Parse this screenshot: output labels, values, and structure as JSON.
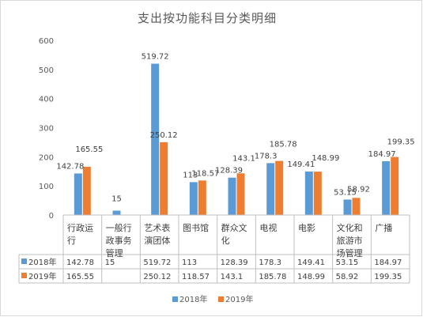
{
  "chart_data": {
    "type": "bar",
    "title": "支出按功能科目分类明细",
    "categories": [
      "行政运行",
      "一般行政事务管理",
      "艺术表演团体",
      "图书馆",
      "群众文化",
      "电视",
      "电影",
      "文化和旅游市场管理",
      "广播"
    ],
    "category_lines": [
      [
        "行政运",
        "行"
      ],
      [
        "一般行",
        "政事务",
        "管理"
      ],
      [
        "艺术表",
        "演团体"
      ],
      [
        "图书馆"
      ],
      [
        "群众文",
        "化"
      ],
      [
        "电视"
      ],
      [
        "电影"
      ],
      [
        "文化和",
        "旅游市",
        "场管理"
      ],
      [
        "广播"
      ]
    ],
    "series": [
      {
        "name": "2018年",
        "color": "#5B9BD5",
        "values": [
          142.78,
          15,
          519.72,
          113,
          128.39,
          178.3,
          149.41,
          53.15,
          184.97
        ]
      },
      {
        "name": "2019年",
        "color": "#ED7D31",
        "values": [
          165.55,
          null,
          250.12,
          118.57,
          143.1,
          185.78,
          148.99,
          58.92,
          199.35
        ]
      }
    ],
    "table_values": [
      [
        "142.78",
        "15",
        "519.72",
        "113",
        "128.39",
        "178.3",
        "149.41",
        "53.15",
        "184.97"
      ],
      [
        "165.55",
        "",
        "250.12",
        "118.57",
        "143.1",
        "185.78",
        "148.99",
        "58.92",
        "199.35"
      ]
    ],
    "label_texts": [
      [
        "142.78",
        "15",
        "519.72",
        "113",
        "128.39",
        "178.3",
        "149.41",
        "53.15",
        "184.97"
      ],
      [
        "165.55",
        "",
        "250.12",
        "118.57",
        "143.1",
        "185.78",
        "148.99",
        "58.92",
        "199.35"
      ]
    ],
    "y_ticks": [
      "0",
      "100",
      "200",
      "300",
      "400",
      "500",
      "600"
    ],
    "ylim": [
      0,
      600
    ],
    "xlabel": "",
    "ylabel": "",
    "legend": {
      "position": "bottom",
      "items": [
        "2018年",
        "2019年"
      ]
    },
    "grid": false,
    "data_table": true
  }
}
